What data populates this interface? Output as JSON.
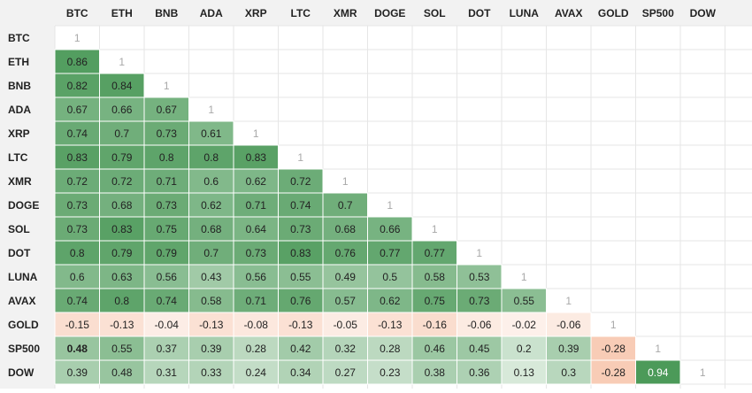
{
  "chart_data": {
    "type": "heatmap",
    "labels": [
      "BTC",
      "ETH",
      "BNB",
      "ADA",
      "XRP",
      "LTC",
      "XMR",
      "DOGE",
      "SOL",
      "DOT",
      "LUNA",
      "AVAX",
      "GOLD",
      "SP500",
      "DOW"
    ],
    "matrix": [
      [
        1
      ],
      [
        0.86,
        1
      ],
      [
        0.82,
        0.84,
        1
      ],
      [
        0.67,
        0.66,
        0.67,
        1
      ],
      [
        0.74,
        0.7,
        0.73,
        0.61,
        1
      ],
      [
        0.83,
        0.79,
        0.8,
        0.8,
        0.83,
        1
      ],
      [
        0.72,
        0.72,
        0.71,
        0.6,
        0.62,
        0.72,
        1
      ],
      [
        0.73,
        0.68,
        0.73,
        0.62,
        0.71,
        0.74,
        0.7,
        1
      ],
      [
        0.73,
        0.83,
        0.75,
        0.68,
        0.64,
        0.73,
        0.68,
        0.66,
        1
      ],
      [
        0.8,
        0.79,
        0.79,
        0.7,
        0.73,
        0.83,
        0.76,
        0.77,
        0.77,
        1
      ],
      [
        0.6,
        0.63,
        0.56,
        0.43,
        0.56,
        0.55,
        0.49,
        0.5,
        0.58,
        0.53,
        1
      ],
      [
        0.74,
        0.8,
        0.74,
        0.58,
        0.71,
        0.76,
        0.57,
        0.62,
        0.75,
        0.73,
        0.55,
        1
      ],
      [
        -0.15,
        -0.13,
        -0.04,
        -0.13,
        -0.08,
        -0.13,
        -0.05,
        -0.13,
        -0.16,
        -0.06,
        -0.02,
        -0.06,
        1
      ],
      [
        0.48,
        0.55,
        0.37,
        0.39,
        0.28,
        0.42,
        0.32,
        0.28,
        0.46,
        0.45,
        0.2,
        0.39,
        -0.28,
        1
      ],
      [
        0.39,
        0.48,
        0.31,
        0.33,
        0.24,
        0.34,
        0.27,
        0.23,
        0.38,
        0.36,
        0.13,
        0.3,
        -0.28,
        0.94,
        1
      ]
    ],
    "bold_cells": [
      [
        13,
        0
      ]
    ],
    "colors": {
      "positive_low": "#eef6ef",
      "positive_high": "#4c9a59",
      "negative_low": "#fdf3ee",
      "negative_high": "#f8ccb6",
      "diagonal_bg": "#ffffff",
      "diagonal_text": "#a8a8a8",
      "header_bg": "#f2f2f2",
      "grid_line": "#e6e6e6",
      "text_dark": "#222222",
      "text_light": "#ffffff"
    }
  }
}
